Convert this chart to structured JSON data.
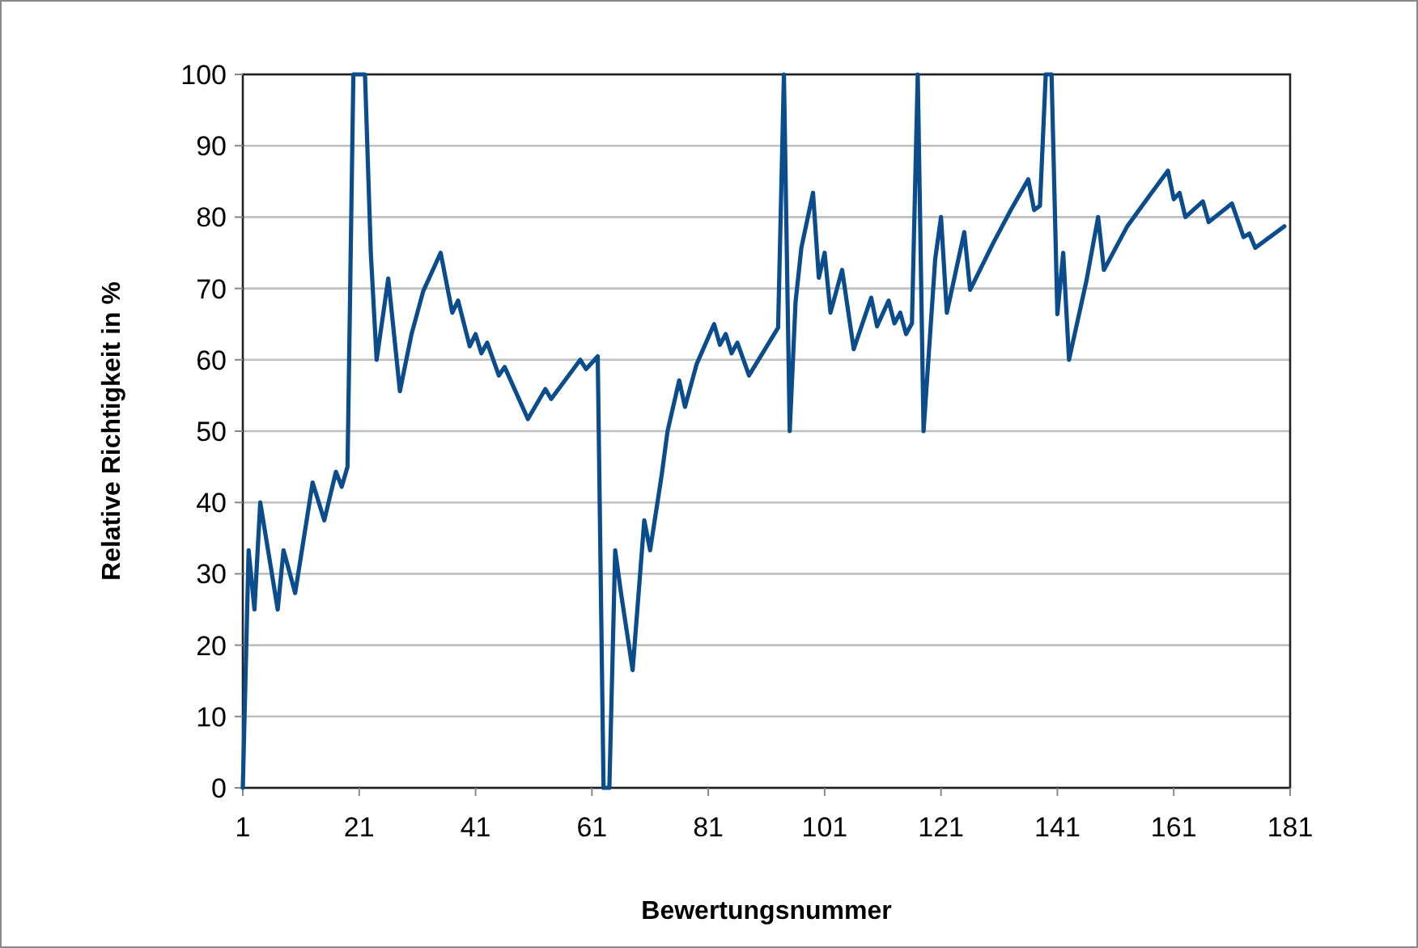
{
  "chart_data": {
    "type": "line",
    "xlabel": "Bewertungsnummer",
    "ylabel": "Relative Richtigkeit in %",
    "xlim": [
      1,
      181
    ],
    "xticks": [
      1,
      21,
      41,
      61,
      81,
      101,
      121,
      141,
      161,
      181
    ],
    "ylim": [
      0,
      100
    ],
    "yticks": [
      0,
      10,
      20,
      30,
      40,
      50,
      60,
      70,
      80,
      90,
      100
    ],
    "grid": "y",
    "series": [
      {
        "color": "#0b4d8c",
        "x": [
          1,
          2,
          3,
          4,
          7,
          8,
          10,
          13,
          15,
          17,
          18,
          19,
          20,
          22,
          23,
          24,
          26,
          28,
          30,
          32,
          35,
          37,
          38,
          40,
          41,
          42,
          43,
          45,
          46,
          50,
          53,
          54,
          59,
          60,
          62,
          63,
          64,
          65,
          66,
          68,
          70,
          71,
          73,
          74,
          76,
          77,
          79,
          82,
          83,
          84,
          85,
          86,
          88,
          93,
          94,
          95,
          96,
          97,
          99,
          100,
          101,
          102,
          104,
          106,
          109,
          110,
          112,
          113,
          114,
          115,
          116,
          117,
          118,
          120,
          121,
          122,
          125,
          126,
          130,
          133,
          136,
          137,
          138,
          139,
          140,
          141,
          142,
          143,
          146,
          148,
          149,
          153,
          157,
          160,
          161,
          162,
          163,
          166,
          167,
          171,
          173,
          174,
          175,
          180
        ],
        "values": [
          0,
          33.3,
          25,
          40,
          25,
          33.3,
          27.3,
          42.8,
          37.5,
          44.3,
          42.2,
          45,
          100,
          100,
          75,
          60,
          71.4,
          55.6,
          63.6,
          69.6,
          75,
          66.6,
          68.3,
          61.9,
          63.6,
          60.9,
          62.4,
          57.8,
          59,
          51.7,
          55.9,
          54.5,
          60,
          58.7,
          60.5,
          0,
          0,
          33.3,
          27.3,
          16.5,
          37.5,
          33.3,
          43.9,
          50,
          57.1,
          53.4,
          59.4,
          65,
          62.1,
          63.6,
          60.9,
          62.4,
          57.8,
          64.5,
          100,
          50,
          68.1,
          75.7,
          83.4,
          71.5,
          75,
          66.6,
          72.6,
          61.5,
          68.7,
          64.7,
          68.3,
          65.1,
          66.6,
          63.6,
          65.1,
          100,
          50,
          74.1,
          80,
          66.6,
          77.9,
          69.8,
          76.4,
          81,
          85.3,
          81,
          81.6,
          100,
          100,
          66.4,
          75,
          60,
          71.1,
          80,
          72.6,
          78.7,
          83.2,
          86.5,
          82.5,
          83.4,
          80,
          82.2,
          79.3,
          81.9,
          77.2,
          77.7,
          75.7,
          78.7
        ]
      }
    ]
  }
}
